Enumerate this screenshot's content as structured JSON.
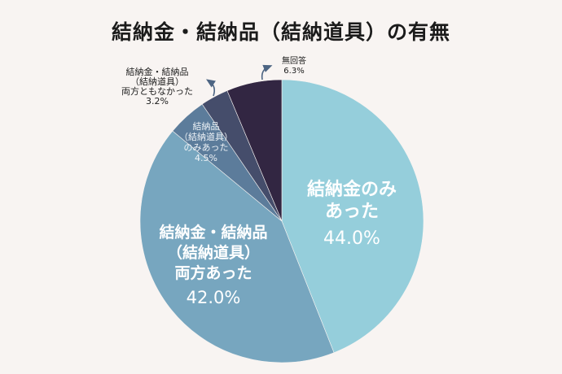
{
  "title": "結納金・結納品（結納道具）の有無",
  "colors": {
    "background": "#f8f4f2",
    "slices": [
      "#95cedb",
      "#77a6bf",
      "#5c7c9b",
      "#454d6b",
      "#322642"
    ],
    "arrow": "#4d6583"
  },
  "chart_data": {
    "type": "pie",
    "title": "結納金・結納品（結納道具）の有無",
    "slices": [
      {
        "lines": [
          "結納金のみ",
          "あった"
        ],
        "value": 44.0,
        "value_label": "44.0%"
      },
      {
        "lines": [
          "結納金・結納品",
          "（結納道具）",
          "両方あった"
        ],
        "value": 42.0,
        "value_label": "42.0%"
      },
      {
        "lines": [
          "結納品",
          "（結納道具）",
          "のみあった"
        ],
        "value": 4.5,
        "value_label": "4.5%"
      },
      {
        "lines": [
          "結納金・結納品",
          "（結納道具）",
          "両方ともなかった"
        ],
        "value": 3.2,
        "value_label": "3.2%"
      },
      {
        "lines": [
          "無回答"
        ],
        "value": 6.3,
        "value_label": "6.3%"
      }
    ]
  }
}
